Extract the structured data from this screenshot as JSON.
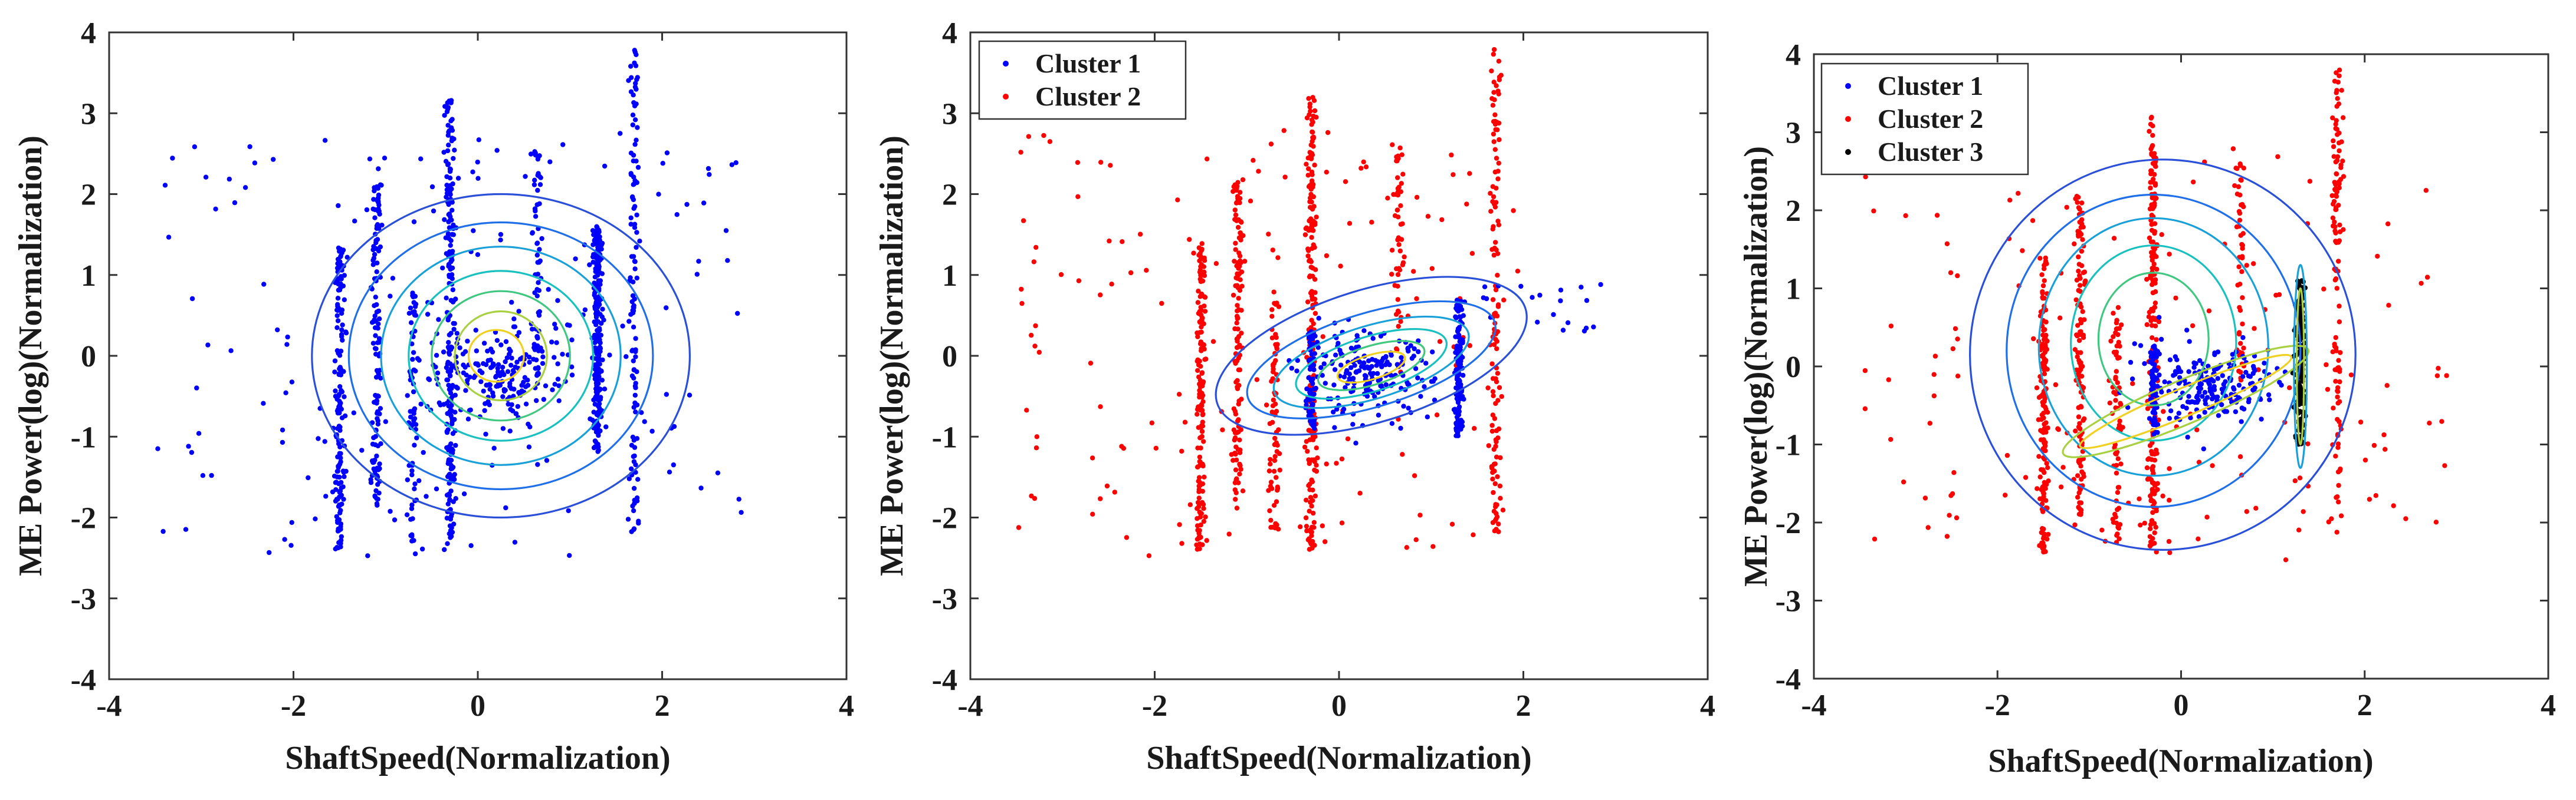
{
  "colors": {
    "cluster1": "#0000ff",
    "cluster2": "#ff0000",
    "cluster3": "#000000",
    "contour_palette": [
      "#3b2fa8",
      "#2a4fd8",
      "#1f6fe8",
      "#1aa0d8",
      "#18c0c0",
      "#40c880",
      "#a8d040",
      "#f0d020"
    ]
  },
  "chart_data": [
    {
      "type": "scatter",
      "panel": "left",
      "xlabel": "ShaftSpeed(Normalization)",
      "ylabel": "ME Power(log)(Normalization)",
      "xlim": [
        -4,
        4
      ],
      "ylim": [
        -4,
        4
      ],
      "xticks": [
        "-4",
        "-2",
        "0",
        "2",
        "4"
      ],
      "yticks": [
        "4",
        "3",
        "2",
        "1",
        "0",
        "-1",
        "-2",
        "-3",
        "-4"
      ],
      "legend": [],
      "point_groups": [
        {
          "cluster": 1,
          "type": "column",
          "x": -1.5,
          "y_range": [
            -2.4,
            1.4
          ],
          "n": 160
        },
        {
          "cluster": 1,
          "type": "column",
          "x": -1.1,
          "y_range": [
            -1.9,
            2.2
          ],
          "n": 130
        },
        {
          "cluster": 1,
          "type": "column",
          "x": -0.7,
          "y_range": [
            -2.3,
            0.8
          ],
          "n": 70
        },
        {
          "cluster": 1,
          "type": "column",
          "x": -0.3,
          "y_range": [
            -2.4,
            3.2
          ],
          "n": 220
        },
        {
          "cluster": 1,
          "type": "column",
          "x": 0.65,
          "y_range": [
            -0.2,
            2.6
          ],
          "n": 50
        },
        {
          "cluster": 1,
          "type": "column",
          "x": 1.3,
          "y_range": [
            -1.2,
            1.6
          ],
          "n": 240
        },
        {
          "cluster": 1,
          "type": "column",
          "x": 1.7,
          "y_range": [
            -2.2,
            3.8
          ],
          "n": 120
        },
        {
          "cluster": 1,
          "type": "blob",
          "center": [
            0.3,
            -0.2
          ],
          "spread": [
            0.35,
            0.3
          ],
          "n": 200
        },
        {
          "cluster": 1,
          "type": "scatter",
          "x_range": [
            -3.5,
            2.9
          ],
          "y_range": [
            -2.5,
            2.8
          ],
          "n": 170
        }
      ],
      "contours": [
        {
          "kind": "ellipse",
          "center": [
            0.25,
            0.0
          ],
          "semi_axes": [
            2.05,
            2.0
          ],
          "level": 1
        },
        {
          "kind": "ellipse",
          "center": [
            0.25,
            0.0
          ],
          "semi_axes": [
            1.65,
            1.65
          ],
          "level": 2
        },
        {
          "kind": "ellipse",
          "center": [
            0.25,
            0.0
          ],
          "semi_axes": [
            1.3,
            1.35
          ],
          "level": 3
        },
        {
          "kind": "ellipse",
          "center": [
            0.25,
            0.0
          ],
          "semi_axes": [
            1.0,
            1.05
          ],
          "level": 4
        },
        {
          "kind": "ellipse",
          "center": [
            0.25,
            0.0
          ],
          "semi_axes": [
            0.75,
            0.8
          ],
          "level": 5
        },
        {
          "kind": "ellipse",
          "center": [
            0.25,
            0.0
          ],
          "semi_axes": [
            0.5,
            0.55
          ],
          "level": 6
        },
        {
          "kind": "ellipse",
          "center": [
            0.2,
            0.0
          ],
          "semi_axes": [
            0.3,
            0.32
          ],
          "level": 7
        }
      ]
    },
    {
      "type": "scatter",
      "panel": "middle",
      "xlabel": "ShaftSpeed(Normalization)",
      "ylabel": "ME Power(log)(Normalization)",
      "xlim": [
        -4,
        4
      ],
      "ylim": [
        -4,
        4
      ],
      "xticks": [
        "-4",
        "-2",
        "0",
        "2",
        "4"
      ],
      "yticks": [
        "4",
        "3",
        "2",
        "1",
        "0",
        "-1",
        "-2",
        "-3",
        "-4"
      ],
      "legend": [
        {
          "label": "Cluster 1",
          "cluster": 1
        },
        {
          "label": "Cluster 2",
          "cluster": 2
        }
      ],
      "point_groups": [
        {
          "cluster": 2,
          "type": "column",
          "x": -1.5,
          "y_range": [
            -2.4,
            1.4
          ],
          "n": 160
        },
        {
          "cluster": 2,
          "type": "column",
          "x": -1.1,
          "y_range": [
            -1.9,
            2.2
          ],
          "n": 130
        },
        {
          "cluster": 2,
          "type": "column",
          "x": -0.7,
          "y_range": [
            -2.3,
            0.8
          ],
          "n": 70
        },
        {
          "cluster": 2,
          "type": "column",
          "x": -0.3,
          "y_range": [
            -2.4,
            3.2
          ],
          "n": 200
        },
        {
          "cluster": 2,
          "type": "column",
          "x": 0.65,
          "y_range": [
            -0.2,
            2.6
          ],
          "n": 50
        },
        {
          "cluster": 2,
          "type": "column",
          "x": 1.7,
          "y_range": [
            -2.2,
            3.8
          ],
          "n": 120
        },
        {
          "cluster": 2,
          "type": "scatter",
          "x_range": [
            -3.5,
            2.0
          ],
          "y_range": [
            -2.5,
            2.8
          ],
          "n": 150
        },
        {
          "cluster": 1,
          "type": "column",
          "x": -0.3,
          "y_range": [
            -0.9,
            0.3
          ],
          "n": 60
        },
        {
          "cluster": 1,
          "type": "column",
          "x": 1.3,
          "y_range": [
            -1.0,
            0.7
          ],
          "n": 140
        },
        {
          "cluster": 1,
          "type": "blob",
          "center": [
            0.3,
            -0.25
          ],
          "spread": [
            0.35,
            0.25
          ],
          "n": 200
        },
        {
          "cluster": 1,
          "type": "scatter",
          "x_range": [
            1.5,
            2.9
          ],
          "y_range": [
            0.3,
            0.9
          ],
          "n": 20
        }
      ],
      "contours": [
        {
          "kind": "tilted",
          "center": [
            0.35,
            0.0
          ],
          "semi_axes": [
            1.75,
            0.82
          ],
          "angle_deg": 17,
          "level": 1
        },
        {
          "kind": "tilted",
          "center": [
            0.35,
            -0.05
          ],
          "semi_axes": [
            1.4,
            0.58
          ],
          "angle_deg": 17,
          "level": 2
        },
        {
          "kind": "tilted",
          "center": [
            0.35,
            -0.08
          ],
          "semi_axes": [
            1.1,
            0.45
          ],
          "angle_deg": 17,
          "level": 3
        },
        {
          "kind": "tilted",
          "center": [
            0.35,
            -0.1
          ],
          "semi_axes": [
            0.85,
            0.34
          ],
          "angle_deg": 17,
          "level": 4
        },
        {
          "kind": "tilted",
          "center": [
            0.35,
            -0.12
          ],
          "semi_axes": [
            0.6,
            0.24
          ],
          "angle_deg": 17,
          "level": 5
        },
        {
          "kind": "tilted",
          "center": [
            0.35,
            -0.14
          ],
          "semi_axes": [
            0.38,
            0.15
          ],
          "angle_deg": 17,
          "level": 7
        }
      ]
    },
    {
      "type": "scatter",
      "panel": "right",
      "xlabel": "ShaftSpeed(Normalization)",
      "ylabel": "ME Power(log)(Normalization)",
      "xlim": [
        -4,
        4
      ],
      "ylim": [
        -4,
        4
      ],
      "xticks": [
        "-4",
        "-2",
        "0",
        "2",
        "4"
      ],
      "yticks": [
        "4",
        "3",
        "2",
        "1",
        "0",
        "-1",
        "-2",
        "-3",
        "-4"
      ],
      "legend": [
        {
          "label": "Cluster 1",
          "cluster": 1
        },
        {
          "label": "Cluster 2",
          "cluster": 2
        },
        {
          "label": "Cluster 3",
          "cluster": 3
        }
      ],
      "point_groups": [
        {
          "cluster": 2,
          "type": "column",
          "x": -1.5,
          "y_range": [
            -2.4,
            1.4
          ],
          "n": 160
        },
        {
          "cluster": 2,
          "type": "column",
          "x": -1.1,
          "y_range": [
            -1.9,
            2.2
          ],
          "n": 130
        },
        {
          "cluster": 2,
          "type": "column",
          "x": -0.7,
          "y_range": [
            -2.3,
            0.8
          ],
          "n": 70
        },
        {
          "cluster": 2,
          "type": "column",
          "x": -0.3,
          "y_range": [
            -2.4,
            3.2
          ],
          "n": 200
        },
        {
          "cluster": 2,
          "type": "column",
          "x": 0.65,
          "y_range": [
            -0.2,
            2.6
          ],
          "n": 50
        },
        {
          "cluster": 2,
          "type": "column",
          "x": 1.7,
          "y_range": [
            -2.2,
            3.8
          ],
          "n": 120
        },
        {
          "cluster": 2,
          "type": "scatter",
          "x_range": [
            -3.5,
            2.9
          ],
          "y_range": [
            -2.5,
            2.8
          ],
          "n": 150
        },
        {
          "cluster": 1,
          "type": "column",
          "x": -0.3,
          "y_range": [
            -0.9,
            0.3
          ],
          "n": 60
        },
        {
          "cluster": 1,
          "type": "blob",
          "center": [
            0.3,
            -0.25
          ],
          "spread": [
            0.35,
            0.25
          ],
          "n": 200
        },
        {
          "cluster": 3,
          "type": "column",
          "x": 1.3,
          "y_range": [
            -1.0,
            1.1
          ],
          "n": 180
        }
      ],
      "contours": [
        {
          "kind": "ellipse",
          "center": [
            -0.2,
            0.15
          ],
          "semi_axes": [
            2.1,
            2.5
          ],
          "level": 1
        },
        {
          "kind": "ellipse",
          "center": [
            -0.3,
            0.2
          ],
          "semi_axes": [
            1.6,
            2.0
          ],
          "level": 2
        },
        {
          "kind": "ellipse",
          "center": [
            -0.3,
            0.25
          ],
          "semi_axes": [
            1.25,
            1.65
          ],
          "level": 3
        },
        {
          "kind": "ellipse",
          "center": [
            -0.3,
            0.3
          ],
          "semi_axes": [
            0.9,
            1.25
          ],
          "level": 4
        },
        {
          "kind": "ellipse",
          "center": [
            -0.3,
            0.35
          ],
          "semi_axes": [
            0.6,
            0.85
          ],
          "level": 5
        },
        {
          "kind": "tilted",
          "center": [
            0.05,
            -0.45
          ],
          "semi_axes": [
            1.45,
            0.28
          ],
          "angle_deg": 23,
          "level": 6
        },
        {
          "kind": "tilted",
          "center": [
            0.05,
            -0.45
          ],
          "semi_axes": [
            1.25,
            0.18
          ],
          "angle_deg": 23,
          "level": 7
        },
        {
          "kind": "ellipse",
          "center": [
            1.3,
            0.0
          ],
          "semi_axes": [
            0.07,
            1.3
          ],
          "level": 3
        },
        {
          "kind": "ellipse",
          "center": [
            1.3,
            0.0
          ],
          "semi_axes": [
            0.04,
            1.0
          ],
          "level": 6
        }
      ]
    }
  ]
}
